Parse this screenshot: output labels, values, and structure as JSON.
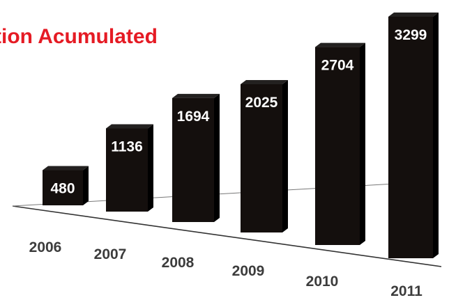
{
  "chart_data": {
    "type": "bar",
    "title": "tion Acumulated",
    "categories": [
      "2006",
      "2007",
      "2008",
      "2009",
      "2010",
      "2011"
    ],
    "values": [
      480,
      1136,
      1694,
      2025,
      2704,
      3299
    ],
    "xlabel": "",
    "ylabel": "",
    "grid": false,
    "legend": "none",
    "ylim": [
      0,
      3299
    ]
  },
  "colors": {
    "title": "#e51b24",
    "bar_front": "#140f0d",
    "bar_side": "#000000",
    "bar_top": "#232120",
    "value_label": "#ffffff",
    "category_label": "#3c3c3c",
    "floor_line": "#333333"
  }
}
